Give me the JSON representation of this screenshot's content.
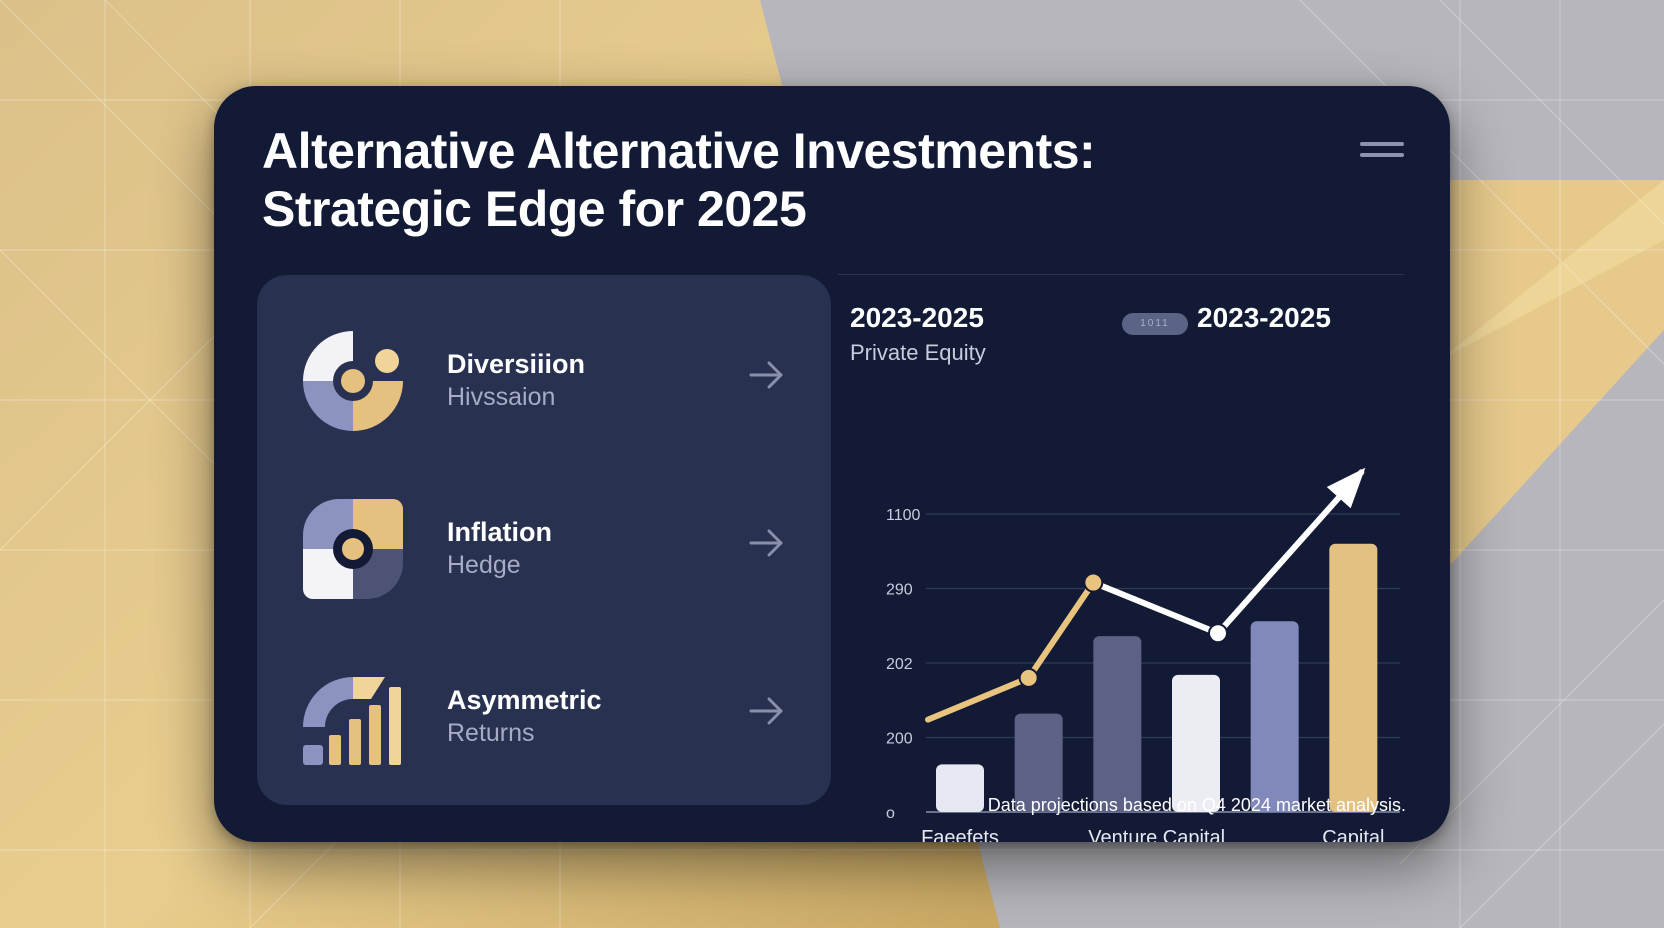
{
  "page": {
    "title": "Alternative Alternative Investments: Strategic Edge for 2025",
    "menu_icon": "hamburger-menu-icon"
  },
  "features": [
    {
      "label": "Diversiiion",
      "sub": "Hivssaion",
      "icon": "donut-pie-icon"
    },
    {
      "label": "Inflation",
      "sub": "Hedge",
      "icon": "quadrant-shield-icon"
    },
    {
      "label": "Asymmetric",
      "sub": "Returns",
      "icon": "growth-bars-icon"
    }
  ],
  "chart": {
    "title": "2023-2025",
    "subtitle": "Private Equity",
    "legend_pill": "1011",
    "legend_label": "2023-2025",
    "footnote": "Data projections based on Q4 2024 market analysis."
  },
  "chart_data": {
    "type": "bar",
    "y_ticks": [
      "o",
      "200",
      "202",
      "290",
      "1100"
    ],
    "x_labels": [
      "Faeefets",
      "Venture Capital",
      "Capital"
    ],
    "bars": [
      {
        "value": 0.16,
        "color": "#e6e8f2"
      },
      {
        "value": 0.33,
        "color": "#5c6285"
      },
      {
        "value": 0.59,
        "color": "#5c6285"
      },
      {
        "value": 0.46,
        "color": "#ecedf3"
      },
      {
        "value": 0.64,
        "color": "#8189bb"
      },
      {
        "value": 0.9,
        "color": "#e3c183"
      }
    ],
    "trend_line": {
      "values": [
        0.31,
        0.45,
        0.77,
        0.6,
        1.14
      ],
      "colors": [
        "#e8c47e",
        "#e8c47e",
        "#ffffff",
        "#ffffff"
      ]
    },
    "grid": true,
    "colors": {
      "gold": "#e3c183",
      "navy": "#121a35"
    }
  }
}
